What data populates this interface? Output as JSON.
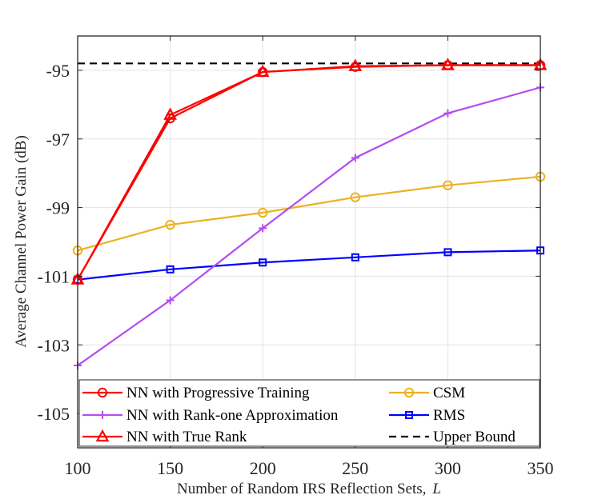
{
  "chart_data": {
    "type": "line",
    "title": "",
    "xlabel": "Number of Random IRS Reflection Sets,",
    "xlabel_var": "L",
    "ylabel": "Average Channel Power Gain (dB)",
    "xlim": [
      100,
      350
    ],
    "ylim": [
      -106,
      -94
    ],
    "x_ticks": [
      100,
      150,
      200,
      250,
      300,
      350
    ],
    "x_tick_labels": [
      "100",
      "150",
      "200",
      "250",
      "300",
      "350"
    ],
    "y_ticks": [
      -95,
      -97,
      -99,
      -101,
      -103,
      -105
    ],
    "y_tick_labels": [
      "-95",
      "-97",
      "-99",
      "-101",
      "-103",
      "-105"
    ],
    "grid": true,
    "legend_position": "bottom",
    "x": [
      100,
      150,
      200,
      250,
      300,
      350
    ],
    "series": [
      {
        "name": "NN with Progressive Training",
        "color": "#ff0000",
        "marker": "circle",
        "dash": "solid",
        "values": [
          -101.1,
          -96.4,
          -95.05,
          -94.9,
          -94.85,
          -94.85
        ]
      },
      {
        "name": "NN with Rank-one Approximation",
        "color": "#b44cf2",
        "marker": "plus",
        "dash": "solid",
        "values": [
          -103.6,
          -101.7,
          -99.6,
          -97.55,
          -96.25,
          -95.5
        ]
      },
      {
        "name": "NN with True Rank",
        "color": "#ff0000",
        "marker": "triangle",
        "dash": "solid",
        "values": [
          -101.1,
          -96.3,
          -95.05,
          -94.88,
          -94.85,
          -94.85
        ]
      },
      {
        "name": "CSM",
        "color": "#edb120",
        "marker": "circle",
        "dash": "solid",
        "values": [
          -100.25,
          -99.5,
          -99.15,
          -98.7,
          -98.35,
          -98.1
        ]
      },
      {
        "name": "RMS",
        "color": "#0000ff",
        "marker": "square",
        "dash": "solid",
        "values": [
          -101.1,
          -100.8,
          -100.6,
          -100.45,
          -100.3,
          -100.25
        ]
      },
      {
        "name": "Upper Bound",
        "color": "#000000",
        "marker": "none",
        "dash": "dashed",
        "values": [
          -94.8,
          -94.8,
          -94.8,
          -94.8,
          -94.8,
          -94.8
        ]
      }
    ],
    "legend_columns": [
      [
        "NN with Progressive Training",
        "NN with Rank-one Approximation",
        "NN with True Rank"
      ],
      [
        "CSM",
        "RMS",
        "Upper Bound"
      ]
    ]
  }
}
